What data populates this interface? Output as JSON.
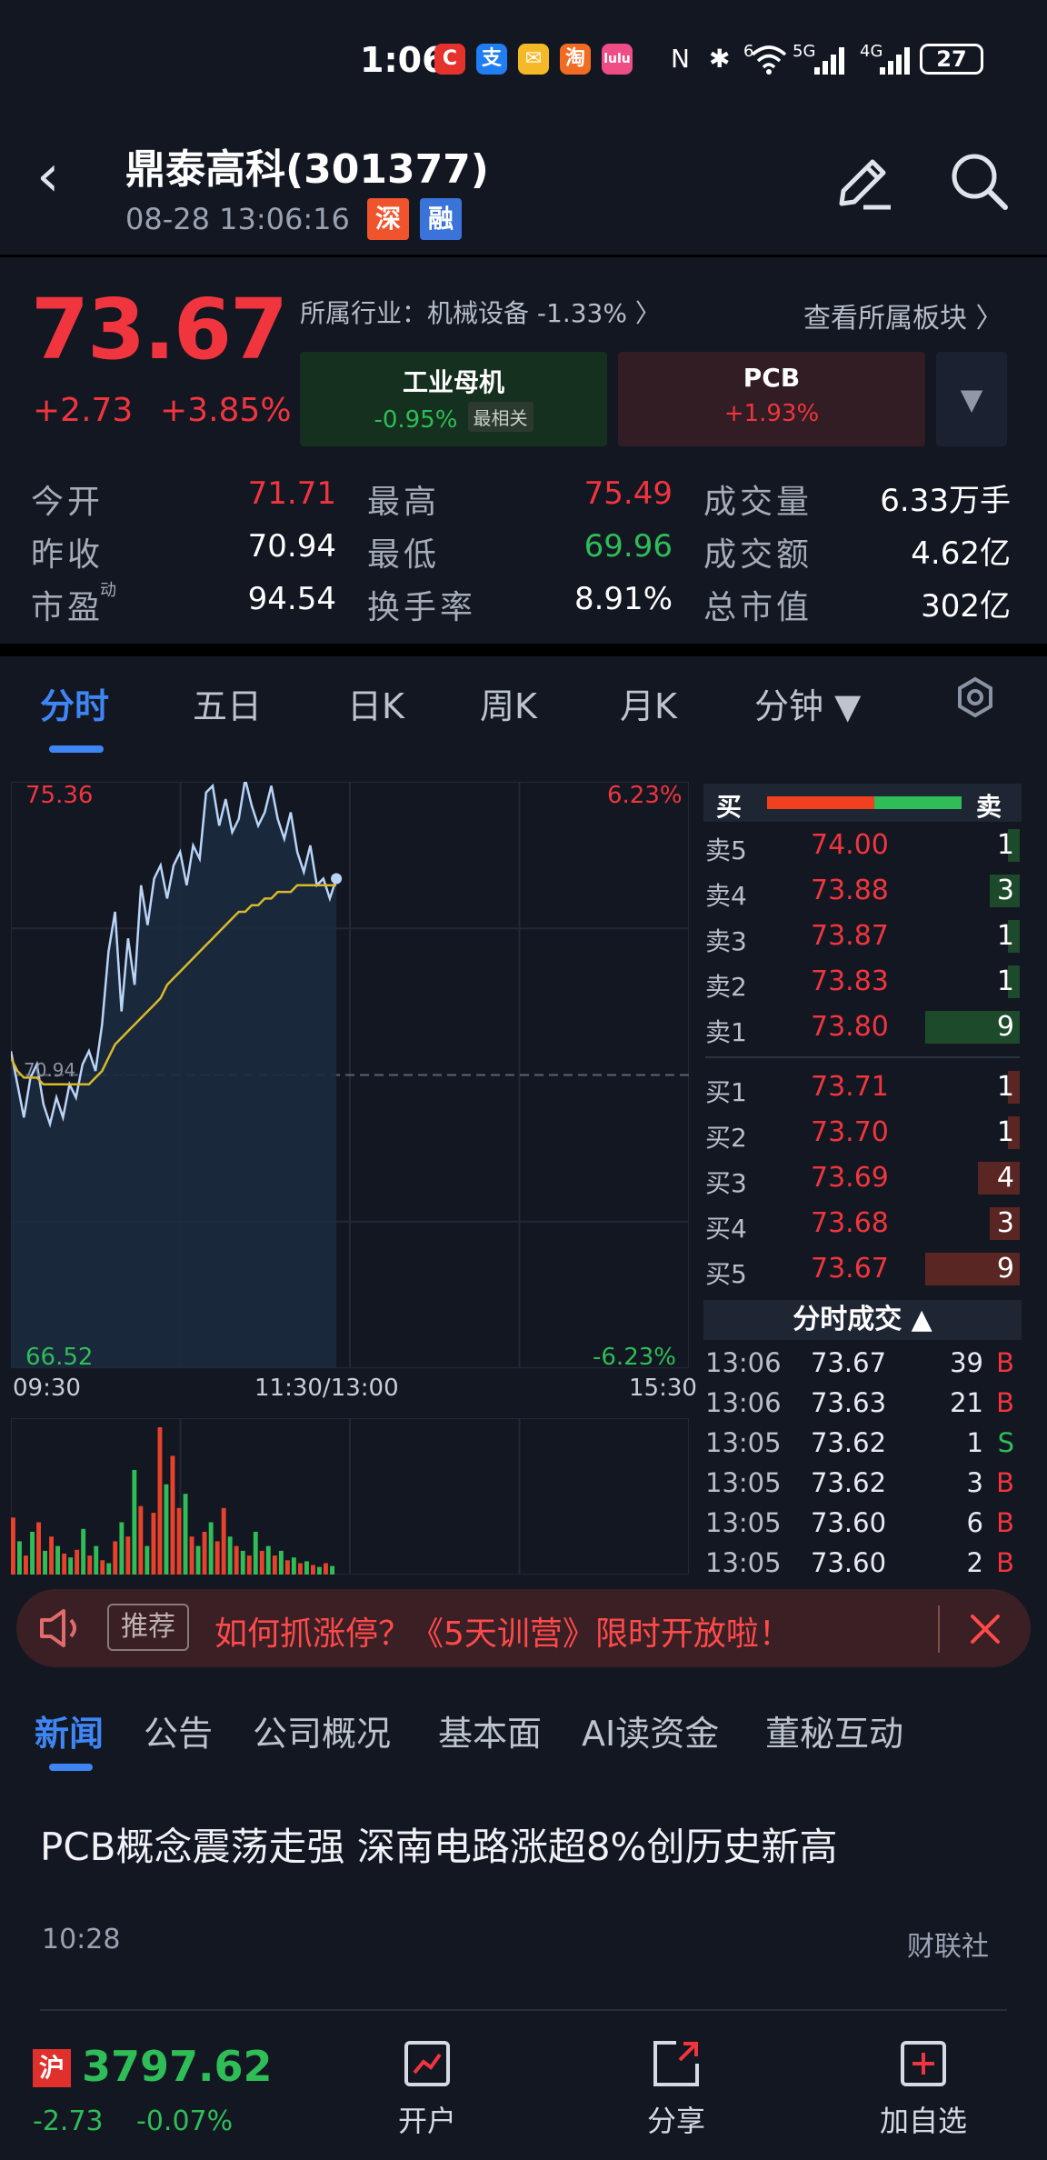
{
  "status_bar": {
    "time": "1:06",
    "apps": [
      "C",
      "支",
      "✉",
      "淘",
      "lulu"
    ],
    "indicators": [
      "N",
      "✱",
      "6",
      "5G",
      "4G"
    ],
    "battery": "27"
  },
  "header": {
    "title": "鼎泰高科(301377)",
    "datetime": "08-28  13:06:16",
    "badge_market": "深",
    "badge_margin": "融"
  },
  "quote": {
    "price": "73.67",
    "change": "+2.73",
    "change_pct": "+3.85%",
    "industry": "所属行业：机械设备 -1.33% 〉",
    "view_sectors": "查看所属板块 〉",
    "sectors": [
      {
        "name": "工业母机",
        "change": "-0.95%",
        "tag": "最相关"
      },
      {
        "name": "PCB",
        "change": "+1.93%"
      }
    ],
    "stats": [
      {
        "label": "今开",
        "value": "71.71",
        "color": "#f0353e"
      },
      {
        "label": "最高",
        "value": "75.49",
        "color": "#f0353e"
      },
      {
        "label": "成交量",
        "value": "6.33万手",
        "color": "#ffffff"
      },
      {
        "label": "昨收",
        "value": "70.94",
        "color": "#ffffff"
      },
      {
        "label": "最低",
        "value": "69.96",
        "color": "#2ebd57"
      },
      {
        "label": "成交额",
        "value": "4.62亿",
        "color": "#ffffff"
      },
      {
        "label": "市盈",
        "label_sup": "动",
        "value": "94.54",
        "color": "#ffffff"
      },
      {
        "label": "换手率",
        "value": "8.91%",
        "color": "#ffffff"
      },
      {
        "label": "总市值",
        "value": "302亿",
        "color": "#ffffff"
      }
    ]
  },
  "chart_tabs": [
    "分时",
    "五日",
    "日K",
    "周K",
    "月K",
    "分钟 ▼"
  ],
  "chart_data": {
    "type": "line",
    "y_max_label": "75.36",
    "y_min_label": "66.52",
    "y_max_pct": "6.23%",
    "y_min_pct": "-6.23%",
    "prev_close_label": "70.94",
    "ylim": [
      66.52,
      75.36
    ],
    "x_ticks": [
      "09:30",
      "11:30/13:00",
      "15:30"
    ],
    "series": [
      {
        "values": [
          71.3,
          70.8,
          70.3,
          70.9,
          71.1,
          70.5,
          70.2,
          70.6,
          70.3,
          70.8,
          70.6,
          71.1,
          71.3,
          71.0,
          71.7,
          72.8,
          73.4,
          71.9,
          73.0,
          72.3,
          73.8,
          73.2,
          73.9,
          74.1,
          73.6,
          74.1,
          74.3,
          73.8,
          74.4,
          74.2,
          75.2,
          75.3,
          74.7,
          75.1,
          74.6,
          74.8,
          75.4,
          75.0,
          74.7,
          74.9,
          75.3,
          74.8,
          74.5,
          74.9,
          74.3,
          74.0,
          74.4,
          73.8,
          73.9,
          73.6,
          73.9
        ]
      },
      {
        "values": [
          71.2,
          71.0,
          70.9,
          70.9,
          70.9,
          70.8,
          70.8,
          70.8,
          70.8,
          70.8,
          70.8,
          70.8,
          70.8,
          70.9,
          71.0,
          71.2,
          71.4,
          71.5,
          71.6,
          71.7,
          71.8,
          71.9,
          72.0,
          72.1,
          72.3,
          72.4,
          72.5,
          72.6,
          72.7,
          72.8,
          72.9,
          73.0,
          73.1,
          73.2,
          73.3,
          73.4,
          73.4,
          73.5,
          73.5,
          73.6,
          73.6,
          73.7,
          73.7,
          73.7,
          73.8,
          73.8,
          73.8,
          73.8,
          73.8,
          73.8,
          73.8
        ]
      }
    ],
    "volume": [
      {
        "v": 60,
        "c": "r"
      },
      {
        "v": 35,
        "c": "g"
      },
      {
        "v": 20,
        "c": "r"
      },
      {
        "v": 45,
        "c": "g"
      },
      {
        "v": 55,
        "c": "r"
      },
      {
        "v": 25,
        "c": "g"
      },
      {
        "v": 40,
        "c": "r"
      },
      {
        "v": 30,
        "c": "g"
      },
      {
        "v": 22,
        "c": "r"
      },
      {
        "v": 18,
        "c": "g"
      },
      {
        "v": 26,
        "c": "r"
      },
      {
        "v": 48,
        "c": "g"
      },
      {
        "v": 20,
        "c": "r"
      },
      {
        "v": 30,
        "c": "g"
      },
      {
        "v": 15,
        "c": "r"
      },
      {
        "v": 12,
        "c": "g"
      },
      {
        "v": 35,
        "c": "r"
      },
      {
        "v": 55,
        "c": "g"
      },
      {
        "v": 40,
        "c": "r"
      },
      {
        "v": 110,
        "c": "g"
      },
      {
        "v": 72,
        "c": "r"
      },
      {
        "v": 30,
        "c": "g"
      },
      {
        "v": 65,
        "c": "r"
      },
      {
        "v": 155,
        "c": "r"
      },
      {
        "v": 95,
        "c": "g"
      },
      {
        "v": 125,
        "c": "r"
      },
      {
        "v": 70,
        "c": "r"
      },
      {
        "v": 85,
        "c": "g"
      },
      {
        "v": 40,
        "c": "r"
      },
      {
        "v": 30,
        "c": "g"
      },
      {
        "v": 45,
        "c": "r"
      },
      {
        "v": 55,
        "c": "g"
      },
      {
        "v": 35,
        "c": "r"
      },
      {
        "v": 70,
        "c": "r"
      },
      {
        "v": 40,
        "c": "g"
      },
      {
        "v": 30,
        "c": "r"
      },
      {
        "v": 25,
        "c": "g"
      },
      {
        "v": 20,
        "c": "r"
      },
      {
        "v": 45,
        "c": "g"
      },
      {
        "v": 25,
        "c": "r"
      },
      {
        "v": 30,
        "c": "g"
      },
      {
        "v": 20,
        "c": "r"
      },
      {
        "v": 25,
        "c": "g"
      },
      {
        "v": 15,
        "c": "r"
      },
      {
        "v": 18,
        "c": "g"
      },
      {
        "v": 12,
        "c": "r"
      },
      {
        "v": 14,
        "c": "g"
      },
      {
        "v": 10,
        "c": "r"
      },
      {
        "v": 8,
        "c": "g"
      },
      {
        "v": 12,
        "c": "r"
      },
      {
        "v": 9,
        "c": "g"
      }
    ]
  },
  "order_book": {
    "header_buy": "买",
    "header_sell": "卖",
    "asks": [
      {
        "label": "卖5",
        "price": "74.00",
        "qty": "1",
        "bar": 0.1
      },
      {
        "label": "卖4",
        "price": "73.88",
        "qty": "3",
        "bar": 0.25
      },
      {
        "label": "卖3",
        "price": "73.87",
        "qty": "1",
        "bar": 0.1
      },
      {
        "label": "卖2",
        "price": "73.83",
        "qty": "1",
        "bar": 0.1
      },
      {
        "label": "卖1",
        "price": "73.80",
        "qty": "9",
        "bar": 0.8
      }
    ],
    "bids": [
      {
        "label": "买1",
        "price": "73.71",
        "qty": "1",
        "bar": 0.1
      },
      {
        "label": "买2",
        "price": "73.70",
        "qty": "1",
        "bar": 0.1
      },
      {
        "label": "买3",
        "price": "73.69",
        "qty": "4",
        "bar": 0.35
      },
      {
        "label": "买4",
        "price": "73.68",
        "qty": "3",
        "bar": 0.25
      },
      {
        "label": "买5",
        "price": "73.67",
        "qty": "9",
        "bar": 0.8
      }
    ],
    "trades_title": "分时成交 ▲",
    "trades": [
      {
        "time": "13:06",
        "price": "73.67",
        "qty": "39",
        "side": "B"
      },
      {
        "time": "13:06",
        "price": "73.63",
        "qty": "21",
        "side": "B"
      },
      {
        "time": "13:05",
        "price": "73.62",
        "qty": "1",
        "side": "S"
      },
      {
        "time": "13:05",
        "price": "73.62",
        "qty": "3",
        "side": "B"
      },
      {
        "time": "13:05",
        "price": "73.60",
        "qty": "6",
        "side": "B"
      },
      {
        "time": "13:05",
        "price": "73.60",
        "qty": "2",
        "side": "B"
      }
    ]
  },
  "ad": {
    "tag": "推荐",
    "text": "如何抓涨停？《5天训营》限时开放啦！"
  },
  "news_tabs": [
    "新闻",
    "公告",
    "公司概况",
    "基本面",
    "AI读资金",
    "董秘互动"
  ],
  "news": {
    "title": "PCB概念震荡走强 深南电路涨超8%创历史新高",
    "time": "10:28",
    "source": "财联社"
  },
  "bottom_bar": {
    "index_badge": "沪",
    "index_value": "3797.62",
    "index_change": "-2.73",
    "index_pct": "-0.07%",
    "nav": [
      "开户",
      "分享",
      "加自选"
    ]
  },
  "colors": {
    "up": "#f0353e",
    "down": "#2ebd57",
    "accent": "#3f86f5",
    "avg_line": "#d8b92c",
    "price_line": "#b9d4f7"
  }
}
